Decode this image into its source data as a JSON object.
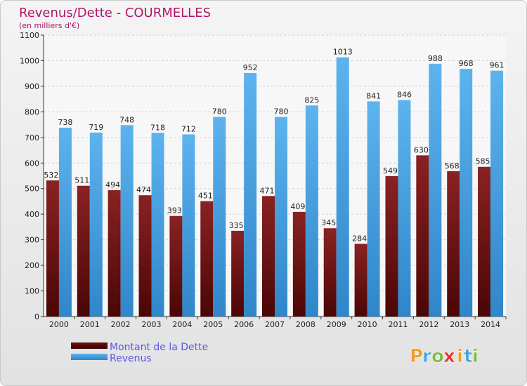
{
  "chart_data": {
    "type": "bar",
    "title": "Revenus/Dette - COURMELLES",
    "subtitle": "(en milliers d'€)",
    "categories": [
      "2000",
      "2001",
      "2002",
      "2003",
      "2004",
      "2005",
      "2006",
      "2007",
      "2008",
      "2009",
      "2010",
      "2011",
      "2012",
      "2013",
      "2014"
    ],
    "series": [
      {
        "name": "Montant de la Dette",
        "color": "#7a1515",
        "values": [
          532,
          511,
          494,
          474,
          393,
          451,
          335,
          471,
          409,
          345,
          284,
          549,
          630,
          568,
          585
        ],
        "labels": [
          "532",
          "511",
          "494",
          "474",
          "393",
          "451",
          "335",
          "471",
          "409",
          "345",
          "284",
          "549",
          "630",
          "568",
          "585"
        ]
      },
      {
        "name": "Revenus",
        "color": "#4da6e6",
        "values": [
          738,
          719,
          748,
          718,
          712,
          780,
          952,
          780,
          825,
          1013,
          841,
          846,
          988,
          968,
          961
        ],
        "labels": [
          "738",
          "719",
          "748",
          "718",
          "712",
          "780",
          "952",
          "780",
          "825",
          "1013",
          "841",
          "846",
          "988",
          "968",
          "961"
        ]
      }
    ],
    "y_ticks": [
      "0",
      "100",
      "200",
      "300",
      "400",
      "500",
      "600",
      "700",
      "800",
      "900",
      "1000",
      "1100"
    ],
    "ylim": [
      0,
      1100
    ],
    "grid": true,
    "legend_position": "bottom-left"
  },
  "logo": {
    "text": "Proxiti",
    "letters": [
      "P",
      "r",
      "o",
      "x",
      "i",
      "t",
      "i"
    ],
    "colors": [
      "#f39a1e",
      "#4aa3df",
      "#7dbb3c",
      "#e8312f",
      "#f39a1e",
      "#4aa3df",
      "#7dbb3c"
    ]
  }
}
